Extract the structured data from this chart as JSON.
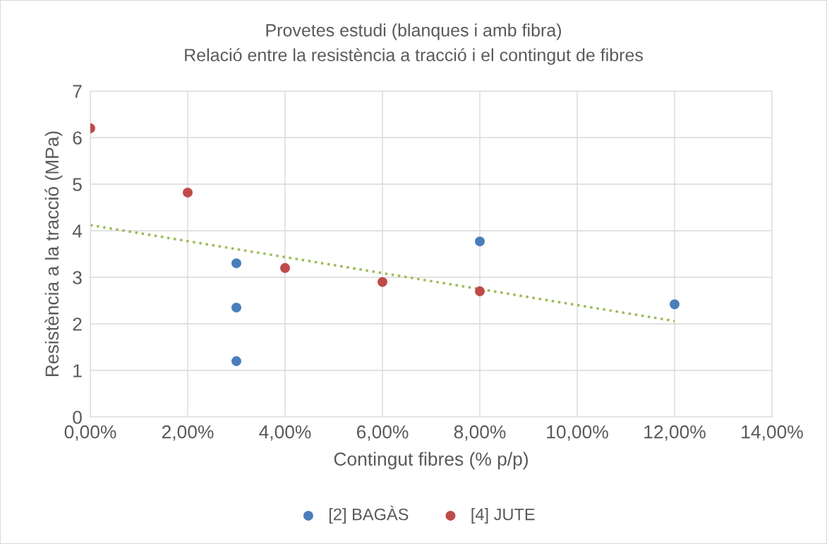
{
  "chart_data": {
    "type": "scatter",
    "title": "Provetes estudi (blanques i amb fibra)",
    "subtitle": "Relació entre la resistència a tracció i el contingut de fibres",
    "xlabel": "Contingut fibres (% p/p)",
    "ylabel": "Resistència a la tracció (MPa)",
    "series": [
      {
        "name": "[2] BAGÀS",
        "color": "#4a7ebb",
        "x": [
          3,
          3,
          3,
          8,
          12
        ],
        "values": [
          3.3,
          2.35,
          1.2,
          3.77,
          2.42
        ]
      },
      {
        "name": "[4] JUTE",
        "color": "#be4b48",
        "x": [
          0,
          2,
          4,
          6,
          8
        ],
        "values": [
          6.2,
          4.82,
          3.2,
          2.9,
          2.7
        ]
      },
      {
        "type": "line",
        "color": "#9bbb59",
        "line_style": "dotted",
        "marker": "none",
        "x": [
          0,
          12
        ],
        "values": [
          4.12,
          2.06
        ]
      }
    ],
    "xlim": [
      0,
      14
    ],
    "xticks": [
      {
        "value": 0,
        "label": "0,00%"
      },
      {
        "value": 2,
        "label": "2,00%"
      },
      {
        "value": 4,
        "label": "4,00%"
      },
      {
        "value": 6,
        "label": "6,00%"
      },
      {
        "value": 8,
        "label": "8,00%"
      },
      {
        "value": 10,
        "label": "10,00%"
      },
      {
        "value": 12,
        "label": "12,00%"
      },
      {
        "value": 14,
        "label": "14,00%"
      }
    ],
    "ylim": [
      0,
      7
    ],
    "yticks": [
      0,
      1,
      2,
      3,
      4,
      5,
      6,
      7
    ],
    "grid": true,
    "legend": "bottom",
    "marker": "circle"
  }
}
